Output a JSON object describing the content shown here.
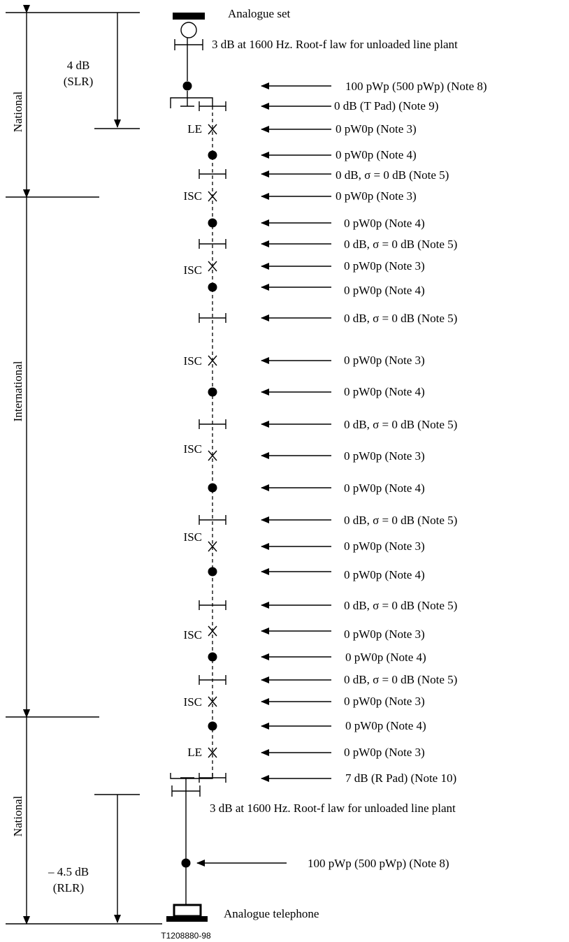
{
  "top_terminal": {
    "label": "Analogue set",
    "line_note": "3 dB at 1600 Hz. Root-f law for unloaded line plant",
    "send_loudness": "4 dB",
    "send_loudness_abbr": "(SLR)",
    "noise_note": "100 pWp (500 pWp) (Note 8)",
    "pad_note": "0 dB (T Pad) (Note 9)"
  },
  "bottom_terminal": {
    "label": "Analogue telephone",
    "line_note": "3 dB at 1600 Hz. Root-f law for unloaded line plant",
    "receive_loudness": "– 4.5 dB",
    "receive_loudness_abbr": "(RLR)",
    "noise_note": "100 pWp (500 pWp) (Note 8)",
    "pad_note": "7 dB (R Pad) (Note 10)"
  },
  "segments": {
    "national_top": "National",
    "international": "International",
    "national_bottom": "National"
  },
  "exchanges": {
    "local": "LE",
    "international": "ISC"
  },
  "notes": {
    "switch_noise": "0 pW0p (Note 3)",
    "link_noise": "0 pW0p (Note 4)",
    "link_loss": "0 dB, σ = 0 dB (Note 5)"
  },
  "figure_id": "T1208880-98"
}
